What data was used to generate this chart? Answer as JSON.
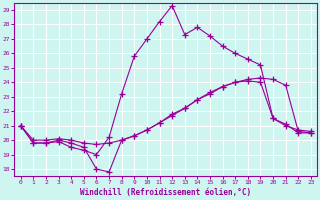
{
  "xlabel": "Windchill (Refroidissement éolien,°C)",
  "ylabel": "",
  "xlim": [
    -0.5,
    23.5
  ],
  "ylim": [
    17.5,
    29.5
  ],
  "yticks": [
    18,
    19,
    20,
    21,
    22,
    23,
    24,
    25,
    26,
    27,
    28,
    29
  ],
  "xticks": [
    0,
    1,
    2,
    3,
    4,
    5,
    6,
    7,
    8,
    9,
    10,
    11,
    12,
    13,
    14,
    15,
    16,
    17,
    18,
    19,
    20,
    21,
    22,
    23
  ],
  "background_color": "#cef5f0",
  "grid_color": "#ffffff",
  "line_color": "#990099",
  "line1_x": [
    0,
    1,
    2,
    3,
    4,
    5,
    6,
    7,
    8,
    9,
    10,
    11,
    12,
    13,
    14,
    15,
    16,
    17,
    18,
    19,
    20,
    21,
    22,
    23
  ],
  "line1_y": [
    21.0,
    19.8,
    19.8,
    20.0,
    19.8,
    19.5,
    18.0,
    17.8,
    20.0,
    20.3,
    20.7,
    21.2,
    21.8,
    22.2,
    22.8,
    23.2,
    23.7,
    24.0,
    24.1,
    24.0,
    21.5,
    21.0,
    20.7,
    20.6
  ],
  "line2_x": [
    0,
    1,
    2,
    3,
    4,
    5,
    6,
    7,
    8,
    9,
    10,
    11,
    12,
    13,
    14,
    15,
    16,
    17,
    18,
    19,
    20,
    21,
    22,
    23
  ],
  "line2_y": [
    21.0,
    19.8,
    19.8,
    19.9,
    19.5,
    19.3,
    19.0,
    20.2,
    23.2,
    25.8,
    27.0,
    28.2,
    29.3,
    27.3,
    27.8,
    27.2,
    26.5,
    26.0,
    25.6,
    25.2,
    21.5,
    21.1,
    20.5,
    20.5
  ],
  "line3_x": [
    0,
    1,
    2,
    3,
    4,
    5,
    6,
    7,
    8,
    9,
    10,
    11,
    12,
    13,
    14,
    15,
    16,
    17,
    18,
    19,
    20,
    21,
    22,
    23
  ],
  "line3_y": [
    21.0,
    20.0,
    20.0,
    20.1,
    20.0,
    19.8,
    19.7,
    19.8,
    20.0,
    20.3,
    20.7,
    21.2,
    21.7,
    22.2,
    22.8,
    23.3,
    23.7,
    24.0,
    24.2,
    24.3,
    24.2,
    23.8,
    20.6,
    20.5
  ]
}
